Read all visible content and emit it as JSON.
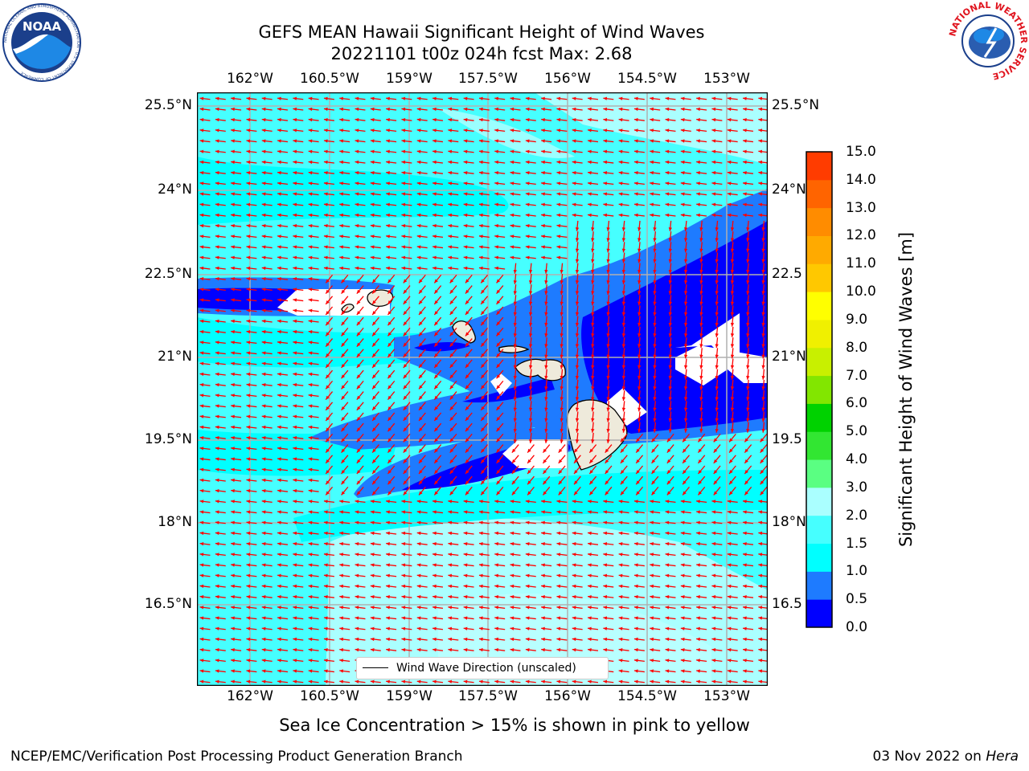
{
  "title": {
    "line1": "GEFS MEAN Hawaii Significant Height of Wind Waves",
    "line2": "20221101 t00z 024h fcst   Max: 2.68"
  },
  "map": {
    "lon_ticks": [
      "162°W",
      "160.5°W",
      "159°W",
      "157.5°W",
      "156°W",
      "154.5°W",
      "153°W"
    ],
    "lat_ticks": [
      "25.5°N",
      "24°N",
      "22.5°N",
      "21°N",
      "19.5°N",
      "18°N",
      "16.5°N"
    ],
    "lat_ticks_right": [
      "25.5°N",
      "24°N",
      "22.5",
      "21°N",
      "19.5",
      "18°N",
      "16.5"
    ],
    "legend_text": "Wind Wave Direction (unscaled)",
    "arrow_color": "#ff0000",
    "land_color": "#eeeadb"
  },
  "colorbar": {
    "label": "Significant Height of Wind Waves [m]",
    "ticks": [
      "15.0",
      "14.0",
      "13.0",
      "12.0",
      "11.0",
      "10.0",
      "9.0",
      "8.0",
      "7.0",
      "6.0",
      "5.0",
      "4.0",
      "3.0",
      "2.0",
      "1.5",
      "1.0",
      "0.5",
      "0.0"
    ],
    "colors": [
      "#0000ff",
      "#1e7bff",
      "#00ffff",
      "#46ffff",
      "#aaffff",
      "#5aff82",
      "#32e632",
      "#00d200",
      "#82e600",
      "#c8f000",
      "#f0f000",
      "#ffff00",
      "#ffc800",
      "#ffaa00",
      "#ff8c00",
      "#ff6400",
      "#ff3c00",
      "#ff0000"
    ]
  },
  "subtitle": "Sea Ice Concentration > 15% is shown in pink to yellow",
  "footer": {
    "left": "NCEP/EMC/Verification Post Processing Product Generation Branch",
    "right_prefix": "03 Nov 2022 on ",
    "right_host": "Hera"
  },
  "logos": {
    "noaa_text": "NOAA",
    "noaa_ring_text": "NATIONAL OCEANIC AND ATMOSPHERIC ADMINISTRATION · U.S. DEPARTMENT OF COMMERCE",
    "nws_ring_text": "NATIONAL WEATHER SERVICE"
  }
}
